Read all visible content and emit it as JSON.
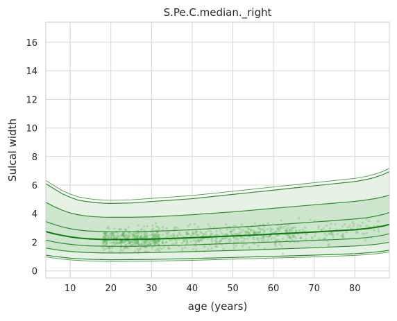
{
  "chart_data": {
    "type": "line",
    "title": "S.Pe.C.median._right",
    "xlabel": "age (years)",
    "ylabel": "Sulcal width",
    "xlim": [
      4,
      88.5
    ],
    "ylim": [
      -0.5,
      17.4
    ],
    "xticks": [
      10,
      20,
      30,
      40,
      50,
      60,
      70,
      80
    ],
    "yticks": [
      0,
      2,
      4,
      6,
      8,
      10,
      12,
      14,
      16
    ],
    "grid": true,
    "colors": {
      "line": "#2e8b2e",
      "median": "#0a7a0a",
      "band_outer": "#e6f2e6",
      "band_inner": "#cde6cd",
      "points": "#5aae5a",
      "grid": "#d6d6d6",
      "frame": "#cccccc"
    },
    "x": [
      4,
      6,
      8,
      10,
      12,
      14,
      16,
      18,
      20,
      25,
      30,
      35,
      40,
      45,
      50,
      55,
      60,
      65,
      70,
      75,
      80,
      83,
      85,
      87,
      88.5
    ],
    "quantiles": [
      {
        "q": "outer_upper",
        "values": [
          6.1,
          5.75,
          5.4,
          5.15,
          4.95,
          4.85,
          4.78,
          4.74,
          4.72,
          4.75,
          4.85,
          4.95,
          5.05,
          5.2,
          5.35,
          5.5,
          5.65,
          5.8,
          5.95,
          6.1,
          6.25,
          6.4,
          6.55,
          6.75,
          6.95
        ]
      },
      {
        "q": "upper",
        "values": [
          4.8,
          4.5,
          4.25,
          4.05,
          3.92,
          3.84,
          3.79,
          3.76,
          3.75,
          3.75,
          3.78,
          3.85,
          3.93,
          4.03,
          4.13,
          4.25,
          4.38,
          4.5,
          4.62,
          4.74,
          4.86,
          4.97,
          5.06,
          5.18,
          5.3
        ]
      },
      {
        "q": "q75",
        "values": [
          3.45,
          3.25,
          3.08,
          2.95,
          2.86,
          2.8,
          2.77,
          2.75,
          2.74,
          2.74,
          2.77,
          2.82,
          2.88,
          2.96,
          3.04,
          3.12,
          3.22,
          3.32,
          3.42,
          3.52,
          3.63,
          3.72,
          3.82,
          3.95,
          4.08
        ]
      },
      {
        "q": "median",
        "values": [
          2.75,
          2.6,
          2.48,
          2.38,
          2.3,
          2.25,
          2.22,
          2.2,
          2.19,
          2.2,
          2.22,
          2.27,
          2.32,
          2.38,
          2.44,
          2.5,
          2.58,
          2.65,
          2.72,
          2.8,
          2.88,
          2.96,
          3.04,
          3.14,
          3.25
        ]
      },
      {
        "q": "q25",
        "values": [
          2.15,
          2.03,
          1.93,
          1.86,
          1.8,
          1.76,
          1.74,
          1.73,
          1.72,
          1.72,
          1.74,
          1.78,
          1.82,
          1.87,
          1.92,
          1.97,
          2.02,
          2.07,
          2.13,
          2.19,
          2.26,
          2.33,
          2.4,
          2.5,
          2.6
        ]
      },
      {
        "q": "lower",
        "values": [
          1.6,
          1.5,
          1.42,
          1.36,
          1.32,
          1.29,
          1.27,
          1.26,
          1.25,
          1.26,
          1.28,
          1.31,
          1.35,
          1.39,
          1.43,
          1.47,
          1.52,
          1.57,
          1.62,
          1.68,
          1.74,
          1.8,
          1.85,
          1.93,
          2.0
        ]
      },
      {
        "q": "outer_lower",
        "values": [
          1.1,
          1.02,
          0.95,
          0.89,
          0.85,
          0.82,
          0.8,
          0.79,
          0.78,
          0.79,
          0.8,
          0.83,
          0.86,
          0.9,
          0.94,
          0.98,
          1.02,
          1.06,
          1.1,
          1.15,
          1.2,
          1.26,
          1.31,
          1.38,
          1.45
        ]
      }
    ]
  }
}
